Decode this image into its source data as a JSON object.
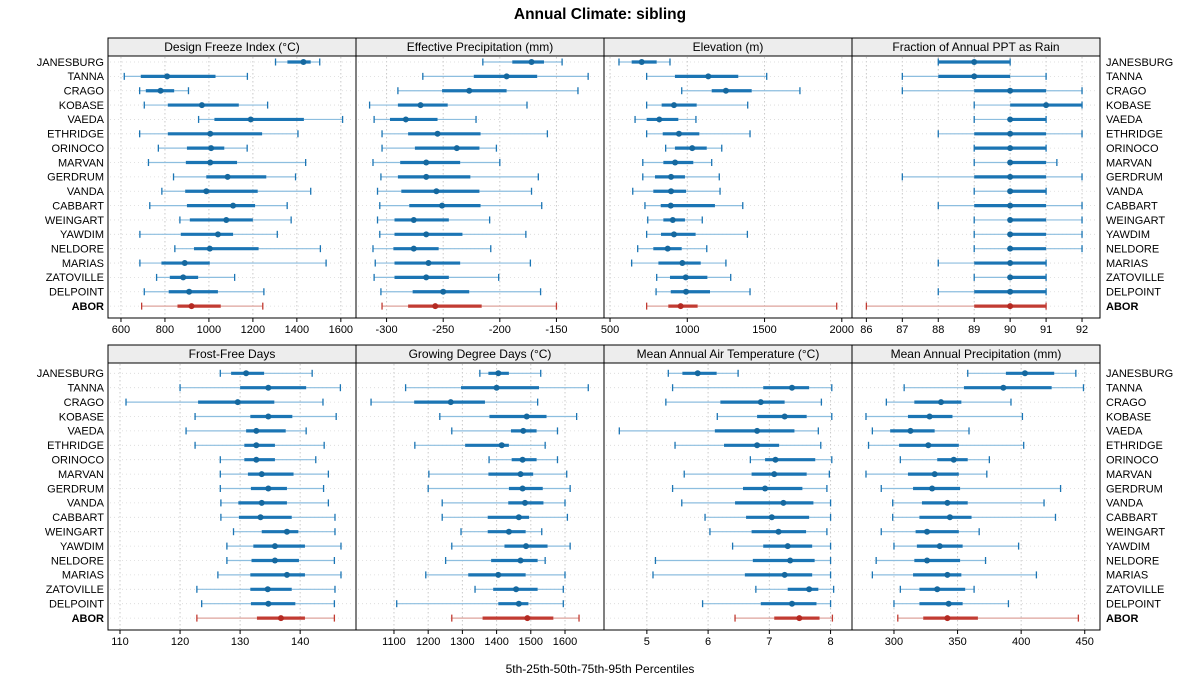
{
  "title": "Annual Climate: sibling",
  "footer": "5th-25th-50th-75th-95th Percentiles",
  "colors": {
    "blue": "#1b75b4",
    "blue_light": "#8dbedf",
    "blue_dot": "#15689f",
    "red": "#c23b32",
    "red_light": "#dda39c",
    "red_dot": "#b52a22",
    "header_bg": "#ededed",
    "grid": "#c9c9c9",
    "row_guide": "#d9d9d9",
    "panel_border": "#000000"
  },
  "chart_data": {
    "type": "percentile_bars",
    "percentiles": [
      5,
      25,
      50,
      75,
      95
    ],
    "stations": [
      "JANESBURG",
      "TANNA",
      "CRAGO",
      "KOBASE",
      "VAEDA",
      "ETHRIDGE",
      "ORINOCO",
      "MARVAN",
      "GERDRUM",
      "VANDA",
      "CABBART",
      "WEINGART",
      "YAWDIM",
      "NELDORE",
      "MARIAS",
      "ZATOVILLE",
      "DELPOINT",
      "ABOR"
    ],
    "highlight_station": "ABOR",
    "legend_note": "5th-25th-50th-75th-95th Percentiles",
    "panels": [
      {
        "title": "Design Freeze Index (°C)",
        "xlim": [
          541,
          1669
        ],
        "ticks": [
          600,
          800,
          1000,
          1200,
          1400,
          1600
        ],
        "values": [
          [
            1303,
            1357,
            1430,
            1463,
            1504
          ],
          [
            615,
            690,
            810,
            1030,
            1175
          ],
          [
            685,
            713,
            780,
            842,
            907
          ],
          [
            706,
            813,
            968,
            1136,
            1267
          ],
          [
            953,
            1025,
            1190,
            1432,
            1608
          ],
          [
            685,
            813,
            1006,
            1242,
            1405
          ],
          [
            770,
            900,
            1010,
            1070,
            1174
          ],
          [
            725,
            895,
            1006,
            1128,
            1440
          ],
          [
            839,
            988,
            1085,
            1261,
            1394
          ],
          [
            786,
            892,
            988,
            1222,
            1463
          ],
          [
            731,
            900,
            1110,
            1210,
            1356
          ],
          [
            868,
            913,
            1079,
            1200,
            1374
          ],
          [
            686,
            872,
            1041,
            1110,
            1311
          ],
          [
            845,
            932,
            1004,
            1226,
            1507
          ],
          [
            686,
            784,
            890,
            1004,
            1533
          ],
          [
            762,
            822,
            883,
            951,
            1117
          ],
          [
            706,
            817,
            910,
            1041,
            1250
          ],
          [
            694,
            857,
            921,
            1054,
            1245
          ]
        ]
      },
      {
        "title": "Effective Precipitation (mm)",
        "xlim": [
          -327,
          -108
        ],
        "ticks": [
          -300,
          -250,
          -200,
          -150
        ],
        "values": [
          [
            -215,
            -189,
            -172,
            -161,
            -145
          ],
          [
            -268,
            -223,
            -194,
            -167,
            -122
          ],
          [
            -290,
            -251,
            -227,
            -194,
            -131
          ],
          [
            -315,
            -290,
            -270,
            -246,
            -176
          ],
          [
            -311,
            -297,
            -283,
            -255,
            -221
          ],
          [
            -304,
            -281,
            -255,
            -217,
            -158
          ],
          [
            -304,
            -275,
            -238,
            -218,
            -203
          ],
          [
            -312,
            -288,
            -265,
            -235,
            -200
          ],
          [
            -305,
            -290,
            -265,
            -226,
            -166
          ],
          [
            -308,
            -287,
            -256,
            -218,
            -172
          ],
          [
            -306,
            -280,
            -251,
            -217,
            -163
          ],
          [
            -308,
            -293,
            -276,
            -245,
            -209
          ],
          [
            -306,
            -293,
            -265,
            -233,
            -177
          ],
          [
            -312,
            -294,
            -276,
            -254,
            -208
          ],
          [
            -310,
            -293,
            -263,
            -235,
            -173
          ],
          [
            -311,
            -293,
            -265,
            -245,
            -201
          ],
          [
            -305,
            -277,
            -250,
            -227,
            -164
          ],
          [
            -304,
            -281,
            -257,
            -216,
            -150
          ]
        ]
      },
      {
        "title": "Elevation (m)",
        "xlim": [
          461,
          2066
        ],
        "ticks": [
          500,
          1000,
          1500,
          2000
        ],
        "values": [
          [
            558,
            640,
            705,
            802,
            888
          ],
          [
            737,
            920,
            1136,
            1330,
            1514
          ],
          [
            964,
            1158,
            1250,
            1417,
            1729
          ],
          [
            737,
            834,
            914,
            1061,
            1391
          ],
          [
            662,
            737,
            819,
            942,
            1056
          ],
          [
            737,
            841,
            946,
            1078,
            1406
          ],
          [
            860,
            920,
            1032,
            1126,
            1223
          ],
          [
            712,
            845,
            921,
            1039,
            1158
          ],
          [
            712,
            791,
            895,
            985,
            1207
          ],
          [
            647,
            780,
            895,
            992,
            1212
          ],
          [
            726,
            828,
            893,
            1179,
            1359
          ],
          [
            744,
            845,
            906,
            985,
            1097
          ],
          [
            737,
            830,
            914,
            1054,
            1389
          ],
          [
            679,
            780,
            873,
            964,
            1126
          ],
          [
            640,
            813,
            968,
            1087,
            1250
          ],
          [
            802,
            888,
            990,
            1130,
            1281
          ],
          [
            798,
            893,
            992,
            1147,
            1406
          ],
          [
            737,
            877,
            957,
            1067,
            1967
          ]
        ]
      },
      {
        "title": "Fraction of Annual PPT as Rain",
        "xlim": [
          85.6,
          92.5
        ],
        "ticks": [
          86,
          87,
          88,
          89,
          90,
          91,
          92
        ],
        "values": [
          [
            88,
            88,
            89,
            90,
            90
          ],
          [
            87,
            88,
            89,
            90,
            91
          ],
          [
            87,
            89,
            90,
            91,
            92
          ],
          [
            89,
            90,
            91,
            92,
            92
          ],
          [
            89,
            90,
            90,
            91,
            91
          ],
          [
            88,
            89,
            90,
            91,
            92
          ],
          [
            89,
            89,
            90,
            91,
            91
          ],
          [
            89,
            90,
            90,
            91,
            91.3
          ],
          [
            87,
            89,
            90,
            91,
            92
          ],
          [
            89,
            90,
            90,
            91,
            91
          ],
          [
            88,
            89,
            90,
            91,
            92
          ],
          [
            89,
            90,
            90,
            91,
            92
          ],
          [
            89,
            90,
            90,
            91,
            92
          ],
          [
            89,
            90,
            90,
            91,
            92
          ],
          [
            88,
            89,
            90,
            91,
            91
          ],
          [
            89,
            90,
            90,
            91,
            91
          ],
          [
            88,
            89,
            90,
            91,
            91
          ],
          [
            86,
            89,
            90,
            91,
            91
          ]
        ]
      },
      {
        "title": "Frost-Free Days",
        "xlim": [
          108,
          149.3
        ],
        "ticks": [
          110,
          120,
          130,
          140
        ],
        "values": [
          [
            126.7,
            128.5,
            131,
            134,
            142
          ],
          [
            120,
            130,
            134.7,
            141,
            146.7
          ],
          [
            111,
            123,
            129.6,
            135.7,
            143.8
          ],
          [
            122.5,
            131.7,
            134.7,
            138.7,
            146
          ],
          [
            121,
            131,
            132.7,
            137.6,
            141
          ],
          [
            122.5,
            130.7,
            132.7,
            135.8,
            144
          ],
          [
            126.7,
            130.7,
            132.7,
            135.8,
            142.6
          ],
          [
            126.7,
            131.3,
            133.6,
            138.9,
            144.7
          ],
          [
            126.7,
            131.8,
            134.7,
            137.8,
            143.9
          ],
          [
            126.8,
            129.7,
            133.6,
            137.8,
            144.7
          ],
          [
            126.8,
            129.8,
            133.4,
            138.6,
            145.8
          ],
          [
            128.9,
            133.6,
            137.8,
            139.7,
            145.8
          ],
          [
            127.8,
            132.2,
            135.8,
            140.8,
            146.8
          ],
          [
            127.8,
            131.9,
            135.8,
            139.8,
            145.7
          ],
          [
            126.3,
            131.7,
            137.8,
            140.8,
            146.8
          ],
          [
            122.8,
            131.7,
            134.6,
            138.6,
            145.8
          ],
          [
            123.6,
            131.8,
            134.7,
            139.2,
            145.7
          ],
          [
            122.8,
            132.8,
            136.8,
            140.8,
            145.7
          ]
        ]
      },
      {
        "title": "Growing Degree Days (°C)",
        "xlim": [
          989,
          1714
        ],
        "ticks": [
          1100,
          1200,
          1300,
          1400,
          1500,
          1600
        ],
        "values": [
          [
            1351,
            1376,
            1405,
            1436,
            1529
          ],
          [
            1134,
            1296,
            1400,
            1524,
            1668
          ],
          [
            1033,
            1159,
            1266,
            1366,
            1520
          ],
          [
            1234,
            1379,
            1488,
            1546,
            1634
          ],
          [
            1269,
            1442,
            1478,
            1517,
            1578
          ],
          [
            1161,
            1308,
            1415,
            1436,
            1542
          ],
          [
            1378,
            1444,
            1476,
            1517,
            1578
          ],
          [
            1202,
            1376,
            1470,
            1507,
            1605
          ],
          [
            1200,
            1436,
            1476,
            1535,
            1615
          ],
          [
            1241,
            1434,
            1483,
            1537,
            1600
          ],
          [
            1241,
            1374,
            1465,
            1495,
            1607
          ],
          [
            1296,
            1374,
            1436,
            1485,
            1532
          ],
          [
            1269,
            1423,
            1486,
            1549,
            1615
          ],
          [
            1251,
            1384,
            1470,
            1520,
            1542
          ],
          [
            1193,
            1317,
            1405,
            1485,
            1600
          ],
          [
            1337,
            1390,
            1457,
            1520,
            1595
          ],
          [
            1108,
            1405,
            1465,
            1493,
            1595
          ],
          [
            1269,
            1359,
            1490,
            1566,
            1641
          ]
        ]
      },
      {
        "title": "Mean Annual Air Temperature (°C)",
        "xlim": [
          4.3,
          8.35
        ],
        "ticks": [
          5,
          6,
          7,
          8
        ],
        "values": [
          [
            5.35,
            5.58,
            5.83,
            6.14,
            6.49
          ],
          [
            5.42,
            6.9,
            7.37,
            7.65,
            8.02
          ],
          [
            5.31,
            6.2,
            6.86,
            7.25,
            7.85
          ],
          [
            6.15,
            6.8,
            7.25,
            7.61,
            8.02
          ],
          [
            4.55,
            6.11,
            6.8,
            7.41,
            7.8
          ],
          [
            5.46,
            6.26,
            6.8,
            7.16,
            7.84
          ],
          [
            6.69,
            6.93,
            7.1,
            7.75,
            8.02
          ],
          [
            5.61,
            6.71,
            7.08,
            7.61,
            7.98
          ],
          [
            5.42,
            6.57,
            6.93,
            7.54,
            7.94
          ],
          [
            5.57,
            6.44,
            7.23,
            7.72,
            8.0
          ],
          [
            5.95,
            6.62,
            7.04,
            7.65,
            8.0
          ],
          [
            6.03,
            6.71,
            7.15,
            7.6,
            7.94
          ],
          [
            6.4,
            6.9,
            7.3,
            7.7,
            8.0
          ],
          [
            5.14,
            6.73,
            7.34,
            7.74,
            8.0
          ],
          [
            5.1,
            6.6,
            7.25,
            7.7,
            8.0
          ],
          [
            6.78,
            7.3,
            7.65,
            7.8,
            8.05
          ],
          [
            5.91,
            6.86,
            7.37,
            7.77,
            8.0
          ],
          [
            6.44,
            7.08,
            7.49,
            7.82,
            8.03
          ]
        ]
      },
      {
        "title": "Mean Annual Precipitation (mm)",
        "xlim": [
          267,
          462
        ],
        "ticks": [
          300,
          350,
          400,
          450
        ],
        "values": [
          [
            358,
            388,
            403,
            426,
            443
          ],
          [
            308,
            355,
            386,
            424,
            449
          ],
          [
            294,
            316,
            337,
            353,
            392
          ],
          [
            278,
            311,
            328,
            346,
            401
          ],
          [
            283,
            297,
            313,
            332,
            359
          ],
          [
            280,
            304,
            327,
            351,
            402
          ],
          [
            305,
            334,
            347,
            358,
            375
          ],
          [
            278,
            311,
            332,
            351,
            373
          ],
          [
            290,
            315,
            330,
            352,
            431
          ],
          [
            299,
            322,
            342,
            358,
            418
          ],
          [
            299,
            320,
            344,
            361,
            427
          ],
          [
            290,
            317,
            326,
            351,
            367
          ],
          [
            300,
            318,
            336,
            354,
            398
          ],
          [
            286,
            316,
            326,
            352,
            372
          ],
          [
            283,
            315,
            342,
            353,
            412
          ],
          [
            305,
            320,
            334,
            356,
            363
          ],
          [
            300,
            320,
            343,
            354,
            390
          ],
          [
            303,
            323,
            342,
            366,
            445
          ]
        ]
      }
    ]
  }
}
